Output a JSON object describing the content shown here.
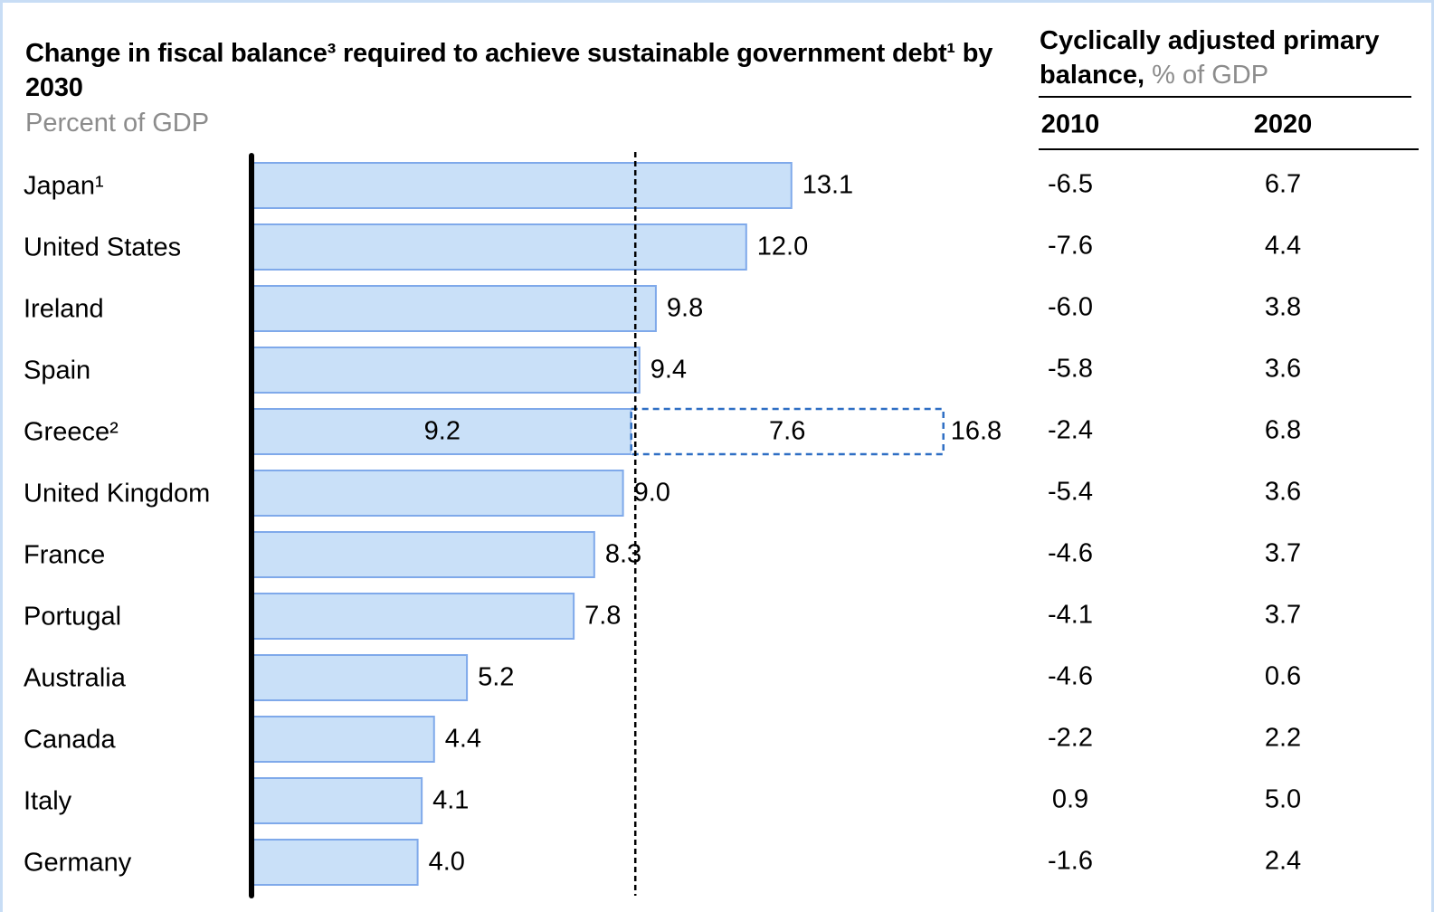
{
  "chart_data": {
    "type": "bar",
    "orientation": "horizontal",
    "title": "Change in fiscal balance³ required to achieve sustainable government debt¹ by 2030",
    "subtitle": "Percent of GDP",
    "categories": [
      "Japan¹",
      "United States",
      "Ireland",
      "Spain",
      "Greece²",
      "United Kingdom",
      "France",
      "Portugal",
      "Australia",
      "Canada",
      "Italy",
      "Germany"
    ],
    "series": [
      {
        "color": "#c9e0f8",
        "edge_color": "#7fa9ea",
        "line_style": "solid",
        "values": [
          13.1,
          12.0,
          9.8,
          9.4,
          9.2,
          9.0,
          8.3,
          7.8,
          5.2,
          4.4,
          4.1,
          4.0
        ],
        "value_labels": [
          "13.1",
          "12.0",
          "9.8",
          "9.4",
          "9.2",
          "9.0",
          "8.3",
          "7.8",
          "5.2",
          "4.4",
          "4.1",
          "4.0"
        ]
      },
      {
        "color": "#ffffff",
        "edge_color": "#2f6fc4",
        "line_style": "dashed",
        "values": [
          null,
          null,
          null,
          null,
          7.6,
          null,
          null,
          null,
          null,
          null,
          null,
          null
        ]
      }
    ],
    "totals": [
      null,
      null,
      null,
      null,
      16.8,
      null,
      null,
      null,
      null,
      null,
      null,
      null
    ],
    "reference_line": 9.3,
    "xlim": [
      0,
      18
    ]
  },
  "table": {
    "title": "Cyclically adjusted primary balance,",
    "title_unit": "% of GDP",
    "columns": [
      "2010",
      "2020"
    ],
    "rows": [
      [
        "-6.5",
        "6.7"
      ],
      [
        "-7.6",
        "4.4"
      ],
      [
        "-6.0",
        "3.8"
      ],
      [
        "-5.8",
        "3.6"
      ],
      [
        "-2.4",
        "6.8"
      ],
      [
        "-5.4",
        "3.6"
      ],
      [
        "-4.6",
        "3.7"
      ],
      [
        "-4.1",
        "3.7"
      ],
      [
        "-4.6",
        "0.6"
      ],
      [
        "-2.2",
        "2.2"
      ],
      [
        "0.9",
        "5.0"
      ],
      [
        "-1.6",
        "2.4"
      ]
    ]
  }
}
